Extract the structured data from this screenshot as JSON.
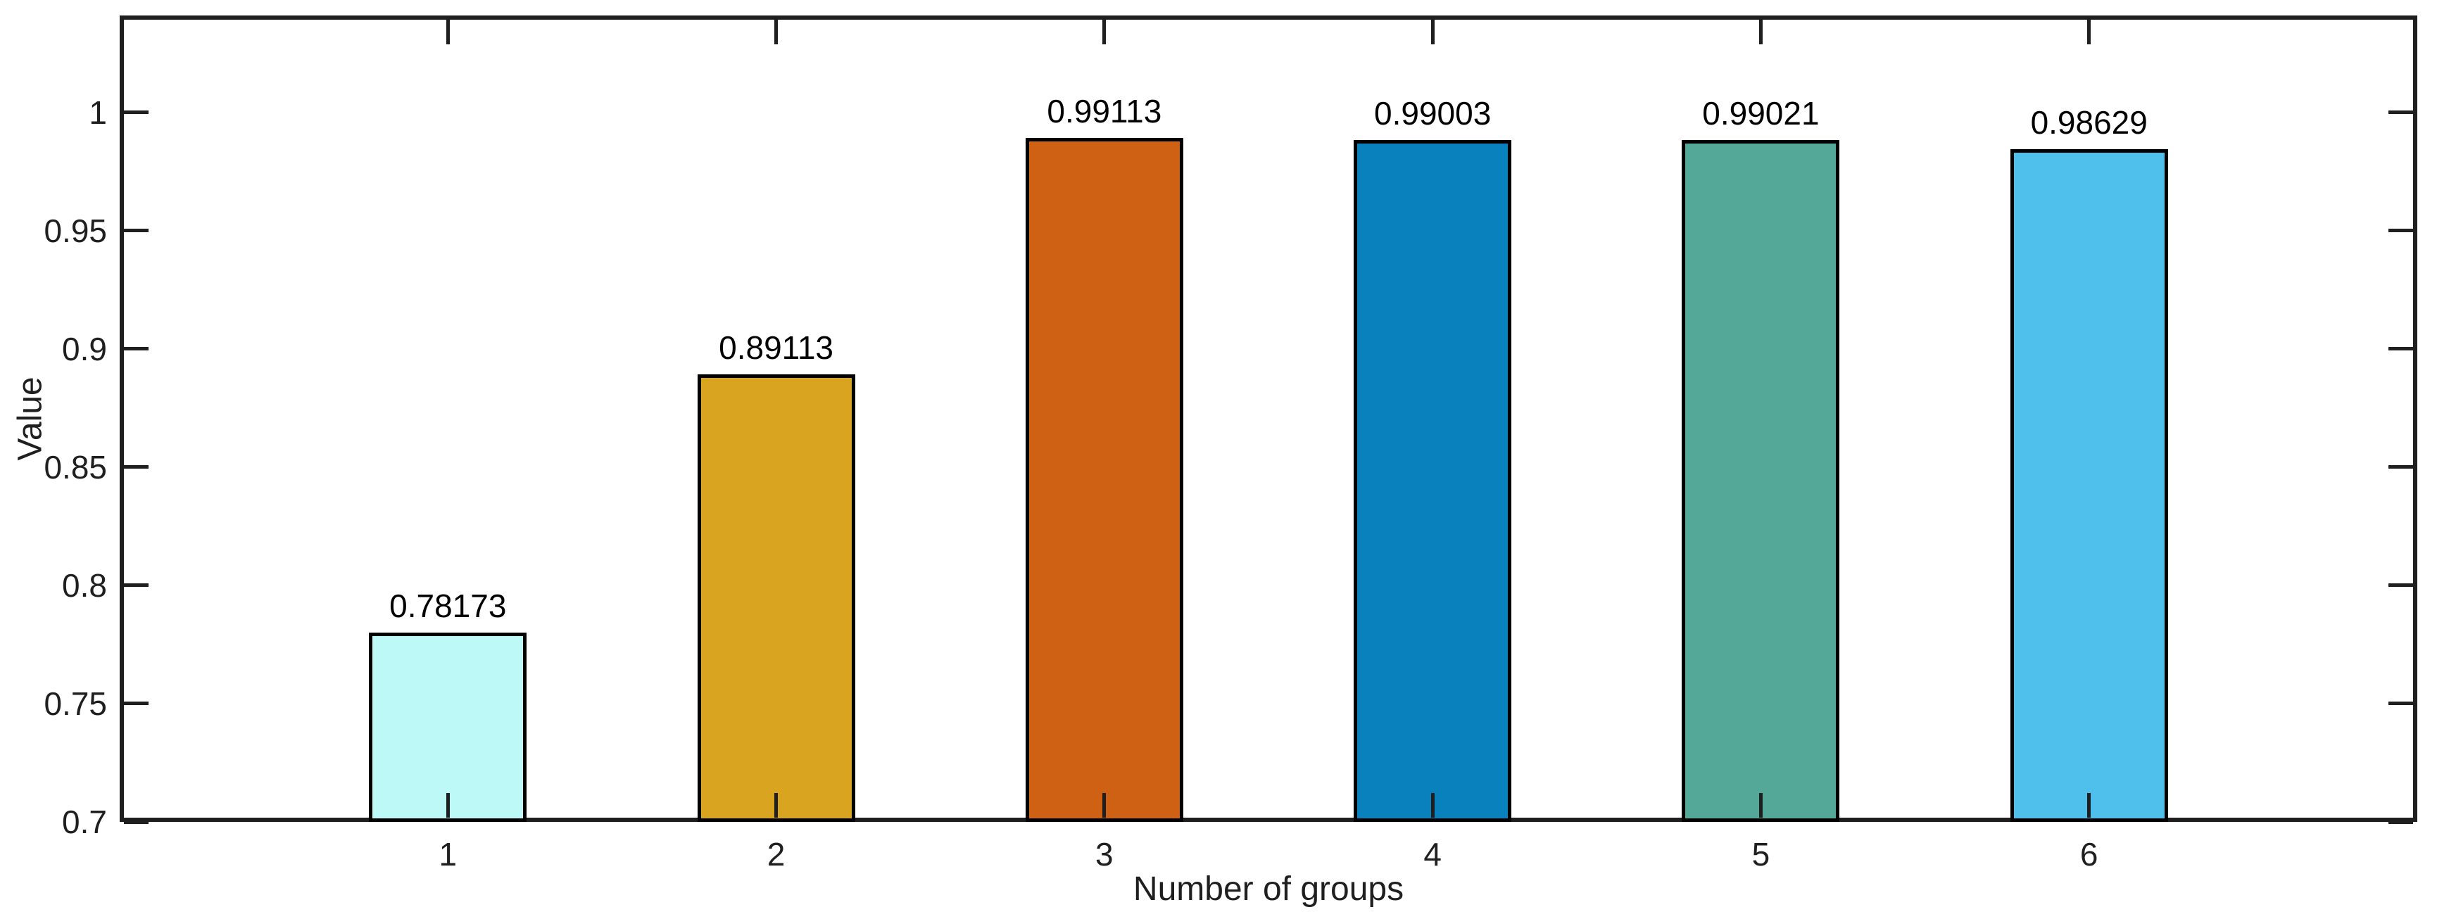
{
  "chart_data": {
    "type": "bar",
    "title": "",
    "xlabel": "Number of groups",
    "ylabel": "Value",
    "categories": [
      "1",
      "2",
      "3",
      "4",
      "5",
      "6"
    ],
    "values": [
      0.78173,
      0.89113,
      0.99113,
      0.99003,
      0.99021,
      0.98629
    ],
    "value_labels": [
      "0.78173",
      "0.89113",
      "0.99113",
      "0.99003",
      "0.99021",
      "0.98629"
    ],
    "bar_colors": [
      "#BCF9F7",
      "#D9A521",
      "#CE6114",
      "#0981BD",
      "#53A897",
      "#4FBFEB"
    ],
    "bar_edge_color": "#000000",
    "axis_color": "#1f1f1f",
    "background_color": "#ffffff",
    "xlim": [
      0,
      7
    ],
    "ylim": [
      0.7,
      1.041
    ],
    "yticks": [
      0.7,
      0.75,
      0.8,
      0.85,
      0.9,
      0.95,
      1
    ],
    "ytick_labels": [
      "0.7",
      "0.75",
      "0.8",
      "0.85",
      "0.9",
      "0.95",
      "1"
    ],
    "bar_width": 0.48,
    "grid": false,
    "legend": null,
    "box": true,
    "tick_direction": "in"
  }
}
